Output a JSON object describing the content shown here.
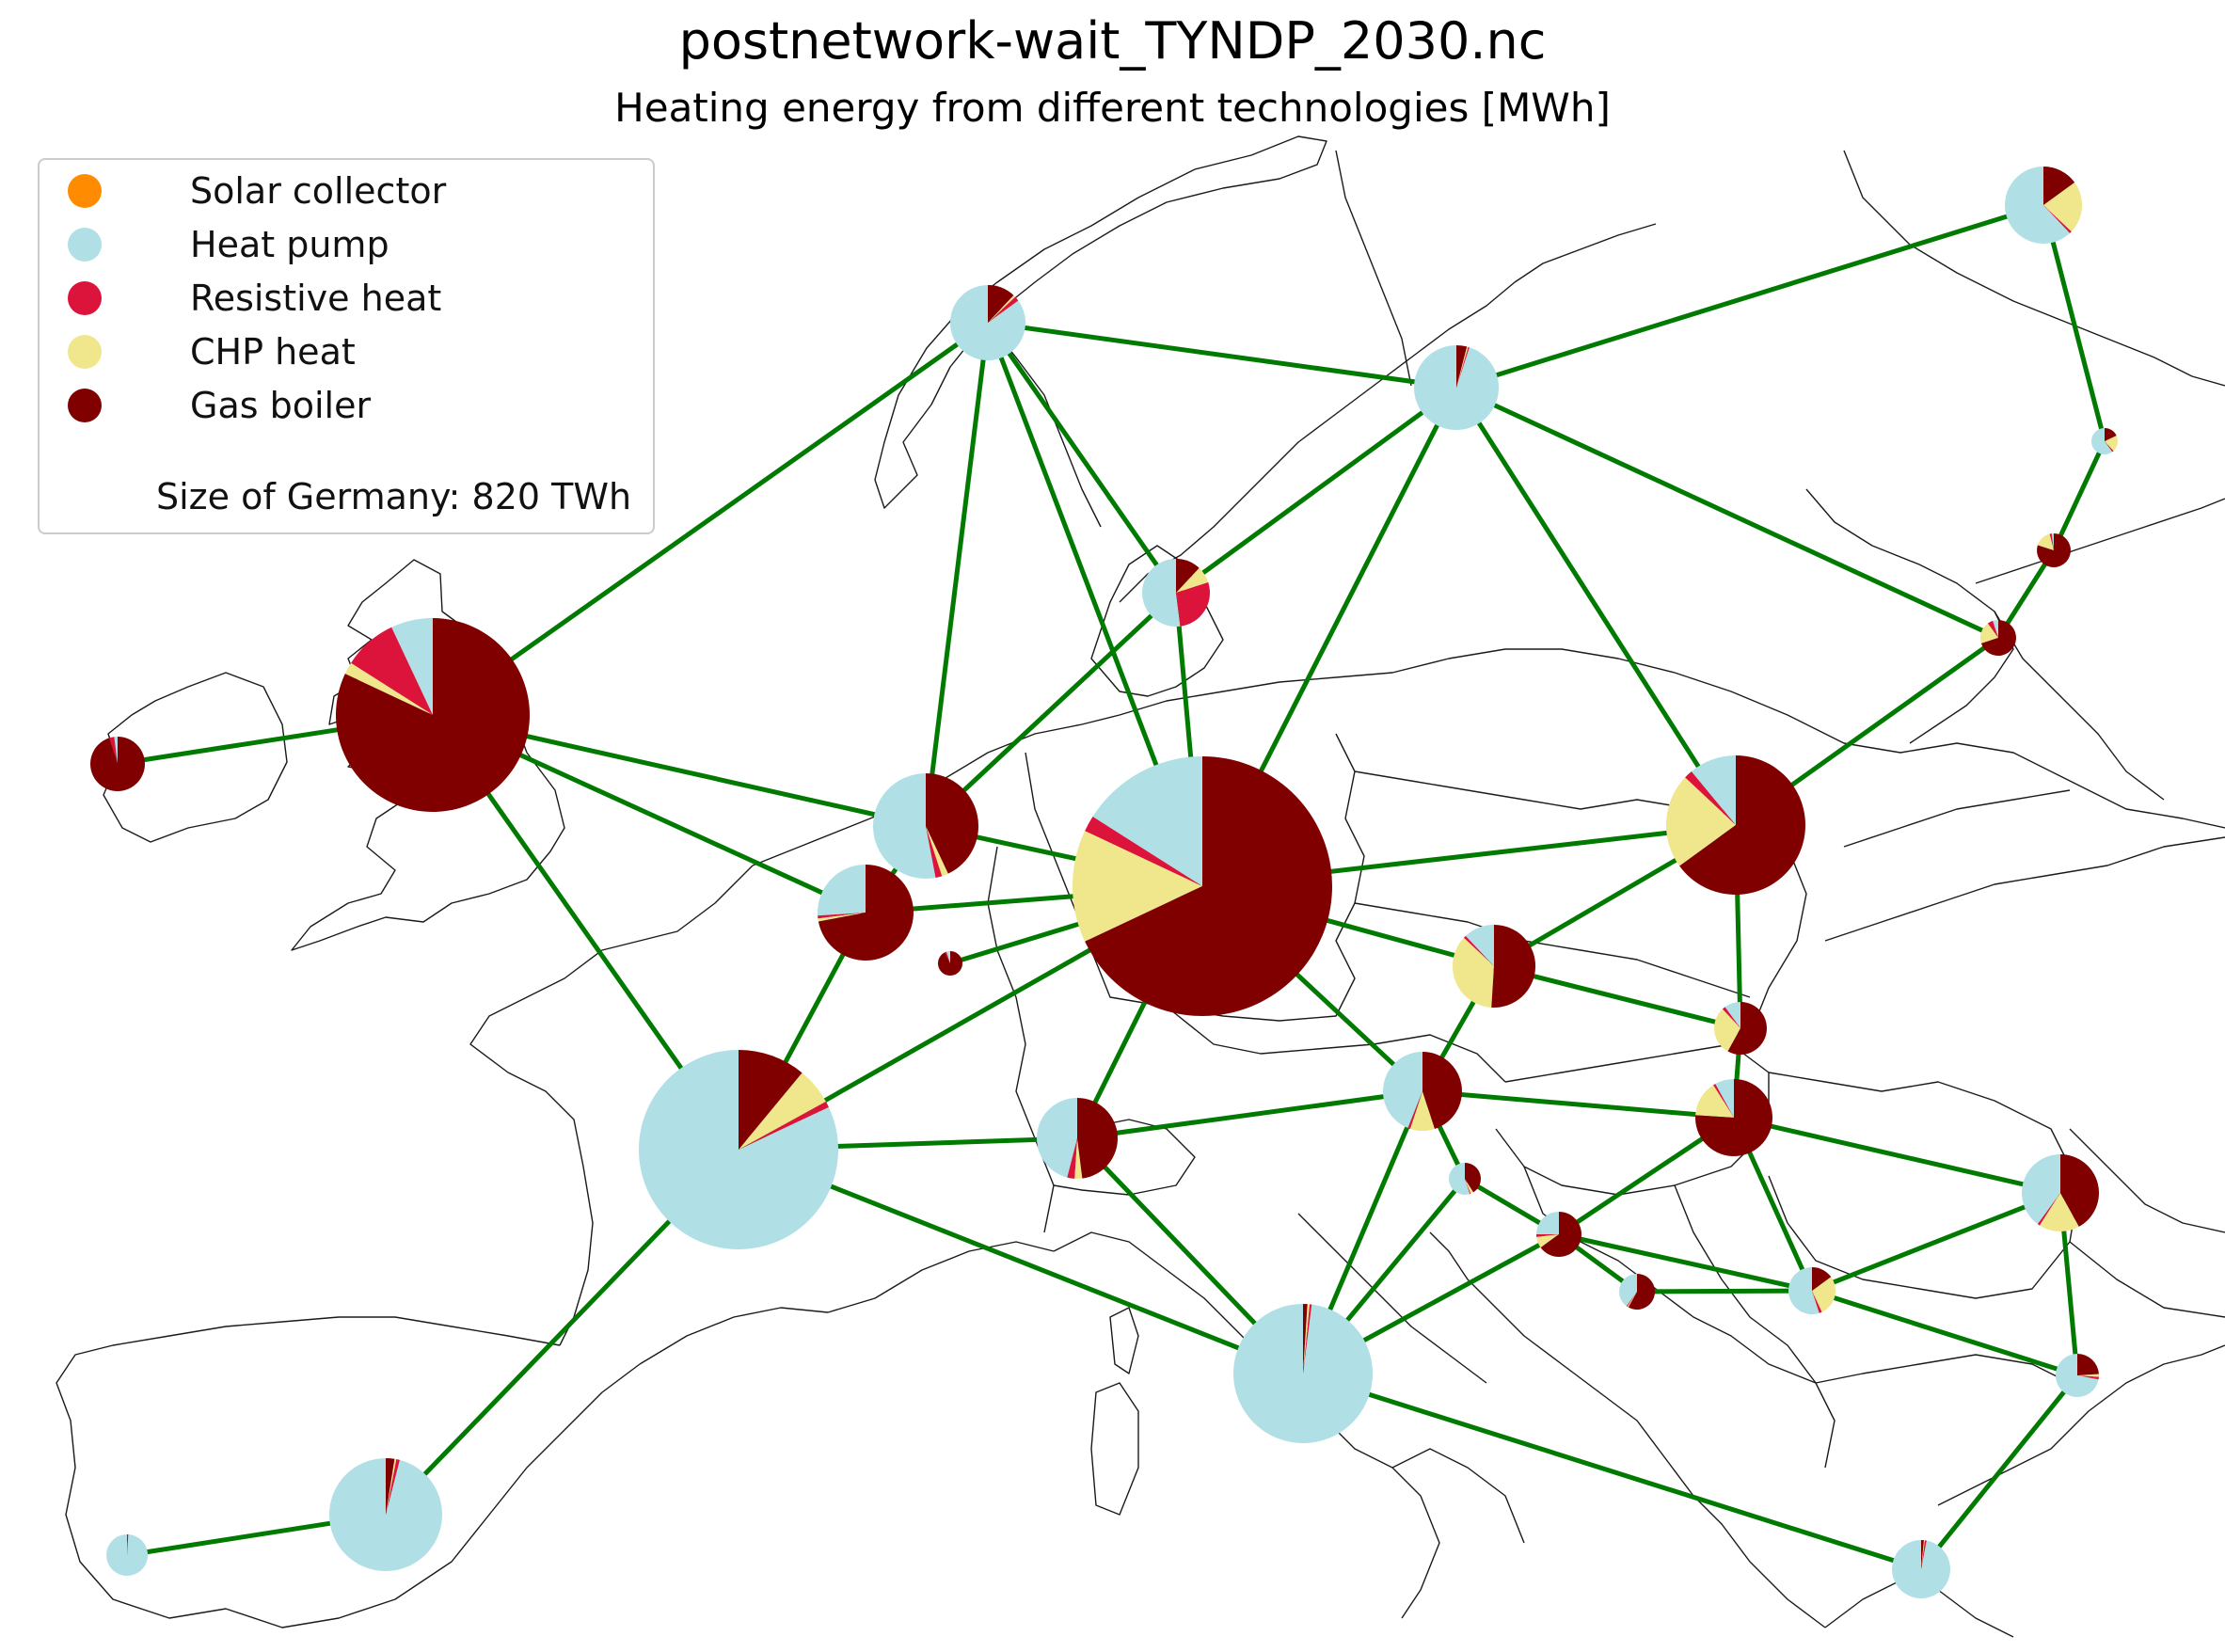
{
  "title": "postnetwork-wait_TYNDP_2030.nc",
  "subtitle": "Heating energy from different technologies [MWh]",
  "legend": {
    "items": [
      {
        "label": "Solar collector",
        "color": "#ff8c00"
      },
      {
        "label": "Heat pump",
        "color": "#b0e0e6"
      },
      {
        "label": "Resistive heat",
        "color": "#dc143c"
      },
      {
        "label": "CHP heat",
        "color": "#f0e68c"
      },
      {
        "label": "Gas boiler",
        "color": "#800000"
      }
    ],
    "note": "Size of Germany: 820 TWh"
  },
  "colors": {
    "link": "#007a00",
    "border": "#1a1a1a",
    "background": "#ffffff"
  },
  "nodes": [
    {
      "id": "uk",
      "shares": [
        0,
        0.07,
        0.09,
        0.02,
        0.82
      ]
    },
    {
      "id": "ie",
      "shares": [
        0,
        0.02,
        0.03,
        0,
        0.95
      ]
    },
    {
      "id": "no",
      "shares": [
        0,
        0.85,
        0.02,
        0.01,
        0.12
      ]
    },
    {
      "id": "se",
      "shares": [
        0,
        0.95,
        0.005,
        0.005,
        0.04
      ]
    },
    {
      "id": "fi",
      "shares": [
        0,
        0.62,
        0.01,
        0.22,
        0.15
      ]
    },
    {
      "id": "dk",
      "shares": [
        0,
        0.52,
        0.28,
        0.08,
        0.12
      ]
    },
    {
      "id": "ee",
      "shares": [
        0,
        0.6,
        0.02,
        0.2,
        0.18
      ]
    },
    {
      "id": "lv",
      "shares": [
        0,
        0.02,
        0.02,
        0.16,
        0.8
      ]
    },
    {
      "id": "lt",
      "shares": [
        0,
        0.05,
        0.05,
        0.2,
        0.7
      ]
    },
    {
      "id": "nl",
      "shares": [
        0,
        0.53,
        0.02,
        0.02,
        0.43
      ]
    },
    {
      "id": "be",
      "shares": [
        0,
        0.26,
        0.01,
        0.01,
        0.72
      ]
    },
    {
      "id": "lu",
      "shares": [
        0,
        0.05,
        0.02,
        0,
        0.93
      ]
    },
    {
      "id": "de",
      "shares": [
        0,
        0.16,
        0.02,
        0.14,
        0.68
      ]
    },
    {
      "id": "pl",
      "shares": [
        0,
        0.11,
        0.02,
        0.22,
        0.65
      ]
    },
    {
      "id": "cz",
      "shares": [
        0,
        0.12,
        0.01,
        0.36,
        0.51
      ]
    },
    {
      "id": "sk",
      "shares": [
        0,
        0.1,
        0.02,
        0.3,
        0.58
      ]
    },
    {
      "id": "at",
      "shares": [
        0,
        0.44,
        0.01,
        0.1,
        0.45
      ]
    },
    {
      "id": "hu",
      "shares": [
        0,
        0.08,
        0.01,
        0.15,
        0.76
      ]
    },
    {
      "id": "fr",
      "shares": [
        0,
        0.82,
        0.01,
        0.06,
        0.11
      ]
    },
    {
      "id": "ch",
      "shares": [
        0,
        0.46,
        0.03,
        0.03,
        0.48
      ]
    },
    {
      "id": "it",
      "shares": [
        0,
        0.98,
        0.005,
        0.005,
        0.01
      ]
    },
    {
      "id": "si",
      "shares": [
        0,
        0.55,
        0.01,
        0.03,
        0.41
      ]
    },
    {
      "id": "hr",
      "shares": [
        0,
        0.25,
        0.02,
        0.08,
        0.65
      ]
    },
    {
      "id": "ba",
      "shares": [
        0,
        0.4,
        0.01,
        0.01,
        0.58
      ]
    },
    {
      "id": "rs",
      "shares": [
        0,
        0.55,
        0.02,
        0.28,
        0.15
      ]
    },
    {
      "id": "ro",
      "shares": [
        0,
        0.4,
        0.01,
        0.17,
        0.42
      ]
    },
    {
      "id": "bg",
      "shares": [
        0,
        0.72,
        0.02,
        0.02,
        0.24
      ]
    },
    {
      "id": "gr",
      "shares": [
        0,
        0.97,
        0.01,
        0.005,
        0.015
      ]
    },
    {
      "id": "es",
      "shares": [
        0,
        0.96,
        0.01,
        0.005,
        0.025
      ]
    },
    {
      "id": "pt",
      "shares": [
        0,
        0.99,
        0.005,
        0,
        0.005
      ]
    }
  ],
  "links": [
    [
      "ie",
      "uk"
    ],
    [
      "uk",
      "no"
    ],
    [
      "uk",
      "nl"
    ],
    [
      "uk",
      "be"
    ],
    [
      "uk",
      "fr"
    ],
    [
      "no",
      "nl"
    ],
    [
      "no",
      "dk"
    ],
    [
      "no",
      "de"
    ],
    [
      "no",
      "se"
    ],
    [
      "se",
      "dk"
    ],
    [
      "se",
      "de"
    ],
    [
      "se",
      "pl"
    ],
    [
      "se",
      "lt"
    ],
    [
      "se",
      "fi"
    ],
    [
      "fi",
      "ee"
    ],
    [
      "ee",
      "lv"
    ],
    [
      "lv",
      "lt"
    ],
    [
      "lt",
      "pl"
    ],
    [
      "dk",
      "nl"
    ],
    [
      "dk",
      "de"
    ],
    [
      "nl",
      "de"
    ],
    [
      "nl",
      "be"
    ],
    [
      "be",
      "de"
    ],
    [
      "be",
      "fr"
    ],
    [
      "lu",
      "de"
    ],
    [
      "fr",
      "de"
    ],
    [
      "fr",
      "ch"
    ],
    [
      "fr",
      "it"
    ],
    [
      "fr",
      "es"
    ],
    [
      "es",
      "pt"
    ],
    [
      "de",
      "ch"
    ],
    [
      "de",
      "at"
    ],
    [
      "de",
      "cz"
    ],
    [
      "de",
      "pl"
    ],
    [
      "pl",
      "cz"
    ],
    [
      "pl",
      "sk"
    ],
    [
      "cz",
      "at"
    ],
    [
      "cz",
      "sk"
    ],
    [
      "sk",
      "hu"
    ],
    [
      "at",
      "ch"
    ],
    [
      "at",
      "hu"
    ],
    [
      "at",
      "si"
    ],
    [
      "at",
      "it"
    ],
    [
      "ch",
      "it"
    ],
    [
      "it",
      "si"
    ],
    [
      "it",
      "gr"
    ],
    [
      "it",
      "hr"
    ],
    [
      "si",
      "hr"
    ],
    [
      "hr",
      "hu"
    ],
    [
      "hr",
      "ba"
    ],
    [
      "hr",
      "rs"
    ],
    [
      "ba",
      "rs"
    ],
    [
      "hu",
      "rs"
    ],
    [
      "hu",
      "ro"
    ],
    [
      "rs",
      "ro"
    ],
    [
      "rs",
      "bg"
    ],
    [
      "ro",
      "bg"
    ],
    [
      "bg",
      "gr"
    ]
  ]
}
